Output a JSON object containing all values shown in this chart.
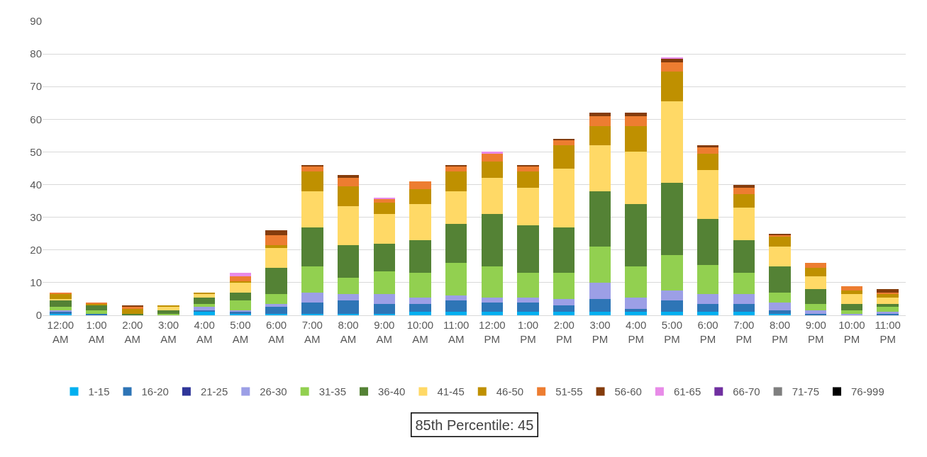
{
  "chart_data": {
    "type": "bar",
    "stacked": true,
    "categories": [
      "12:00 AM",
      "1:00 AM",
      "2:00 AM",
      "3:00 AM",
      "4:00 AM",
      "5:00 AM",
      "6:00 AM",
      "7:00 AM",
      "8:00 AM",
      "9:00 AM",
      "10:00 AM",
      "11:00 AM",
      "12:00 PM",
      "1:00 PM",
      "2:00 PM",
      "3:00 PM",
      "4:00 PM",
      "5:00 PM",
      "6:00 PM",
      "7:00 PM",
      "8:00 PM",
      "9:00 PM",
      "10:00 PM",
      "11:00 PM"
    ],
    "series": [
      {
        "name": "1-15",
        "color": "#00b0f0",
        "values": [
          0.5,
          0,
          0,
          0,
          1,
          0.5,
          0.5,
          0.5,
          0.5,
          0.5,
          1,
          1,
          1,
          1,
          1,
          1,
          1,
          1,
          1,
          1,
          0.5,
          0,
          0,
          0
        ]
      },
      {
        "name": "16-20",
        "color": "#2e75b6",
        "values": [
          0.5,
          0.5,
          0,
          0,
          0.5,
          0.5,
          2,
          3.5,
          4,
          3,
          2.5,
          3.5,
          3,
          3,
          2,
          4,
          1,
          3.5,
          2.5,
          2.5,
          1,
          0.5,
          0,
          0.5
        ]
      },
      {
        "name": "21-25",
        "color": "#2f3699",
        "values": [
          0,
          0,
          0,
          0,
          0,
          0,
          0,
          0,
          0,
          0,
          0,
          0,
          0,
          0,
          0,
          0,
          0,
          0,
          0,
          0,
          0,
          0,
          0,
          0
        ]
      },
      {
        "name": "26-30",
        "color": "#9c9fe6",
        "values": [
          0.5,
          0,
          0,
          0,
          1,
          0.5,
          1,
          3,
          2,
          3,
          2,
          1.5,
          1.5,
          1.5,
          2,
          5,
          3.5,
          3,
          3,
          3,
          2.5,
          1,
          0.5,
          0.5
        ]
      },
      {
        "name": "31-35",
        "color": "#92d050",
        "values": [
          1,
          1,
          0,
          0.5,
          1,
          3,
          3,
          8,
          5,
          7,
          7.5,
          10,
          9.5,
          7.5,
          8,
          11,
          9.5,
          11,
          9,
          6.5,
          3,
          2,
          1,
          1.5
        ]
      },
      {
        "name": "36-40",
        "color": "#548235",
        "values": [
          2,
          1.5,
          0.5,
          1,
          2,
          2.5,
          8,
          12,
          10,
          8.5,
          10,
          12,
          16,
          14.5,
          14,
          17,
          19,
          22,
          14,
          10,
          8,
          4.5,
          2,
          1
        ]
      },
      {
        "name": "41-45",
        "color": "#ffd966",
        "values": [
          0.5,
          0,
          0,
          1,
          1,
          3,
          6,
          11,
          12,
          9,
          11,
          10,
          11,
          11.5,
          18,
          14,
          16,
          25,
          15,
          10,
          6,
          4,
          3,
          2
        ]
      },
      {
        "name": "46-50",
        "color": "#bf9000",
        "values": [
          1.5,
          0.5,
          1.5,
          0.5,
          0.5,
          0.5,
          1,
          6,
          6,
          3.5,
          4.5,
          6,
          5,
          5,
          7,
          6,
          8,
          9,
          5,
          4,
          3,
          2.5,
          1,
          1
        ]
      },
      {
        "name": "51-55",
        "color": "#ed7d31",
        "values": [
          0.5,
          0.5,
          0.5,
          0,
          0,
          1.5,
          3,
          1.5,
          2.5,
          1,
          2.5,
          1.5,
          2.5,
          1.5,
          1.5,
          3,
          3,
          3,
          2,
          2,
          0.5,
          1.5,
          1.5,
          0.5
        ]
      },
      {
        "name": "56-60",
        "color": "#843c0c",
        "values": [
          0,
          0,
          0.5,
          0,
          0,
          0,
          1.5,
          0.5,
          1,
          0,
          0,
          0.5,
          0,
          0.5,
          0.5,
          1,
          1,
          1,
          0.5,
          1,
          0.5,
          0,
          0,
          1
        ]
      },
      {
        "name": "61-65",
        "color": "#e88be8",
        "values": [
          0,
          0,
          0,
          0,
          0,
          1,
          0,
          0,
          0,
          0.5,
          0,
          0,
          0.5,
          0,
          0,
          0,
          0,
          0.5,
          0,
          0,
          0,
          0,
          0,
          0
        ]
      },
      {
        "name": "66-70",
        "color": "#7030a0",
        "values": [
          0,
          0,
          0,
          0,
          0,
          0,
          0,
          0,
          0,
          0,
          0,
          0,
          0,
          0,
          0,
          0,
          0,
          0,
          0,
          0,
          0,
          0,
          0,
          0
        ]
      },
      {
        "name": "71-75",
        "color": "#7f7f7f",
        "values": [
          0,
          0,
          0,
          0,
          0,
          0,
          0,
          0,
          0,
          0,
          0,
          0,
          0,
          0,
          0,
          0,
          0,
          0,
          0,
          0,
          0,
          0,
          0,
          0
        ]
      },
      {
        "name": "76-999",
        "color": "#000000",
        "values": [
          0,
          0,
          0,
          0,
          0,
          0,
          0,
          0,
          0,
          0,
          0,
          0,
          0,
          0,
          0,
          0,
          0,
          0,
          0,
          0,
          0,
          0,
          0,
          0
        ]
      }
    ],
    "ylim": [
      0,
      90
    ],
    "yticks": [
      0,
      10,
      20,
      30,
      40,
      50,
      60,
      70,
      80,
      90
    ],
    "grid": "y",
    "legend": "bottom",
    "annotations": [
      "85th Percentile: 45"
    ]
  }
}
